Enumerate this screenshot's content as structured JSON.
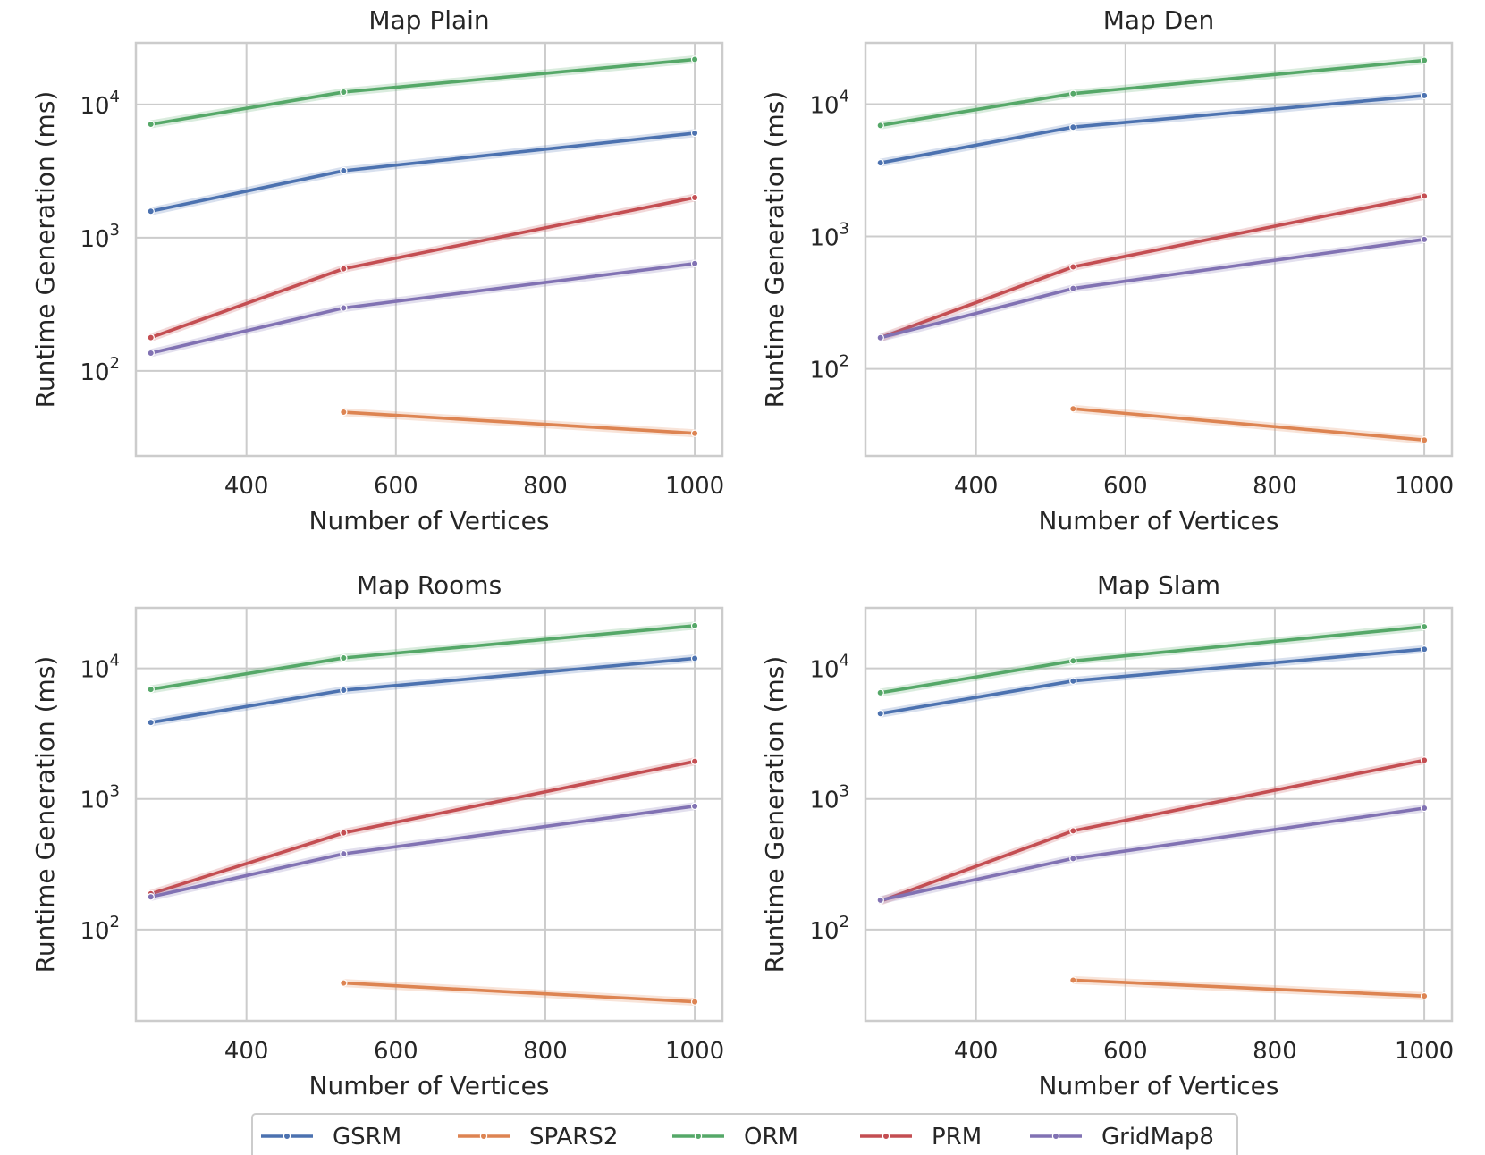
{
  "chart_data": {
    "type": "line",
    "shared": {
      "xlabel": "Number of Vertices",
      "ylabel": "Runtime Generation (ms)",
      "yscale": "log",
      "xlim": [
        252,
        1037
      ],
      "xticks": [
        400,
        600,
        800,
        1000
      ],
      "yticks": [
        100,
        1000,
        10000
      ],
      "grid": true
    },
    "legend": {
      "placement": "bottom-center",
      "entries": [
        {
          "name": "GSRM",
          "color": "#4c72b0"
        },
        {
          "name": "SPARS2",
          "color": "#dd8452"
        },
        {
          "name": "ORM",
          "color": "#55a868"
        },
        {
          "name": "PRM",
          "color": "#c44e52"
        },
        {
          "name": "GridMap8",
          "color": "#8172b3"
        }
      ]
    },
    "panels": [
      {
        "title": "Map Plain",
        "ylim": [
          23,
          29000
        ],
        "series": [
          {
            "name": "GSRM",
            "x": [
              272,
              530,
              1000
            ],
            "y": [
              1580,
              3180,
              6100
            ]
          },
          {
            "name": "SPARS2",
            "x": [
              530,
              1000
            ],
            "y": [
              49,
              34
            ]
          },
          {
            "name": "ORM",
            "x": [
              272,
              530,
              1000
            ],
            "y": [
              7100,
              12400,
              21800
            ]
          },
          {
            "name": "PRM",
            "x": [
              272,
              530,
              1000
            ],
            "y": [
              178,
              585,
              2000
            ]
          },
          {
            "name": "GridMap8",
            "x": [
              272,
              530,
              1000
            ],
            "y": [
              136,
              297,
              640
            ]
          }
        ]
      },
      {
        "title": "Map Den",
        "ylim": [
          22,
          29000
        ],
        "series": [
          {
            "name": "GSRM",
            "x": [
              272,
              530,
              1000
            ],
            "y": [
              3600,
              6700,
              11600
            ]
          },
          {
            "name": "SPARS2",
            "x": [
              530,
              1000
            ],
            "y": [
              50,
              29
            ]
          },
          {
            "name": "ORM",
            "x": [
              272,
              530,
              1000
            ],
            "y": [
              6900,
              12000,
              21400
            ]
          },
          {
            "name": "PRM",
            "x": [
              272,
              530,
              1000
            ],
            "y": [
              172,
              590,
              2020
            ]
          },
          {
            "name": "GridMap8",
            "x": [
              272,
              530,
              1000
            ],
            "y": [
              172,
              405,
              950
            ]
          }
        ]
      },
      {
        "title": "Map Rooms",
        "ylim": [
          20,
          29000
        ],
        "series": [
          {
            "name": "GSRM",
            "x": [
              272,
              530,
              1000
            ],
            "y": [
              3850,
              6800,
              11900
            ]
          },
          {
            "name": "SPARS2",
            "x": [
              530,
              1000
            ],
            "y": [
              39,
              28
            ]
          },
          {
            "name": "ORM",
            "x": [
              272,
              530,
              1000
            ],
            "y": [
              6900,
              12000,
              21200
            ]
          },
          {
            "name": "PRM",
            "x": [
              272,
              530,
              1000
            ],
            "y": [
              188,
              550,
              1940
            ]
          },
          {
            "name": "GridMap8",
            "x": [
              272,
              530,
              1000
            ],
            "y": [
              178,
              380,
              880
            ]
          }
        ]
      },
      {
        "title": "Map Slam",
        "ylim": [
          20,
          29000
        ],
        "series": [
          {
            "name": "GSRM",
            "x": [
              272,
              530,
              1000
            ],
            "y": [
              4500,
              8000,
              14000
            ]
          },
          {
            "name": "SPARS2",
            "x": [
              530,
              1000
            ],
            "y": [
              41,
              31
            ]
          },
          {
            "name": "ORM",
            "x": [
              272,
              530,
              1000
            ],
            "y": [
              6500,
              11400,
              20800
            ]
          },
          {
            "name": "PRM",
            "x": [
              272,
              530,
              1000
            ],
            "y": [
              165,
              570,
              1980
            ]
          },
          {
            "name": "GridMap8",
            "x": [
              272,
              530,
              1000
            ],
            "y": [
              168,
              350,
              850
            ]
          }
        ]
      }
    ]
  }
}
